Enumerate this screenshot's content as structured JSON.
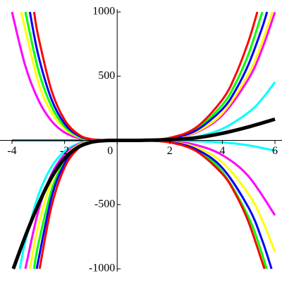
{
  "chart_data": {
    "type": "line",
    "xlim": [
      -4,
      6
    ],
    "ylim": [
      -1000,
      1000
    ],
    "xticks": [
      -4,
      -2,
      0,
      2,
      4,
      6
    ],
    "yticks": [
      -1000,
      -500,
      500,
      1000
    ],
    "series": [
      {
        "color": "#008080",
        "x": [
          -4,
          -3,
          -2,
          -1,
          0
        ],
        "values": [
          0,
          0,
          0,
          0,
          0
        ]
      },
      {
        "color": "#00ffff",
        "x": [
          0,
          1,
          2,
          3,
          4,
          5,
          5.5,
          6
        ],
        "values": [
          0,
          0.4,
          6,
          28,
          90,
          219,
          320,
          454
        ]
      },
      {
        "color": "#ff00ff",
        "x": [
          -4,
          -3.5,
          -3,
          -2.5,
          -2,
          -1.5,
          -1,
          0,
          1,
          2,
          3,
          4,
          5,
          5.5,
          6
        ],
        "values": [
          1000,
          585,
          316,
          152,
          62,
          20,
          4,
          0,
          0.8,
          12,
          62,
          197,
          481,
          705,
          998
        ]
      },
      {
        "color": "#ffff00",
        "x": [
          -3.65,
          -3,
          -2.5,
          -2,
          -1.5,
          -1,
          0,
          1,
          2,
          3,
          4,
          5,
          5.5,
          5.9
        ],
        "values": [
          1000,
          454,
          219,
          90,
          28,
          6,
          0,
          0.8,
          13,
          67,
          212,
          519,
          759,
          1000
        ]
      },
      {
        "color": "#00ff00",
        "x": [
          -3.49,
          -3,
          -2.5,
          -2,
          -1.5,
          -1,
          0,
          1,
          2,
          3,
          4,
          4.5,
          5,
          5.52
        ],
        "values": [
          1000,
          551,
          266,
          109,
          34,
          7,
          0,
          1.1,
          17,
          87,
          276,
          443,
          675,
          1000
        ]
      },
      {
        "color": "#0000ff",
        "x": [
          -3.32,
          -3,
          -2.5,
          -2,
          -1.5,
          -1,
          0,
          1,
          2,
          3,
          4,
          4.5,
          5,
          5.5,
          5.7
        ],
        "values": [
          1000,
          664,
          321,
          131,
          41,
          8,
          0,
          1,
          15,
          77,
          243,
          390,
          594,
          869,
          1000
        ]
      },
      {
        "color": "#ff0000",
        "x": [
          -3.16,
          -3,
          -2.5,
          -2,
          -1.5,
          -1,
          0,
          1,
          2,
          3,
          4,
          4.5,
          5,
          5.33
        ],
        "values": [
          1000,
          810,
          391,
          160,
          51,
          10,
          0,
          1.2,
          20,
          100,
          317,
          508,
          775,
          1000
        ]
      },
      {
        "color": "#00ffff",
        "x": [
          -3.7,
          -3.5,
          -3,
          -2.5,
          -2,
          -1.5,
          -1,
          0,
          2,
          4,
          5,
          6
        ],
        "values": [
          -1000,
          -795,
          -429,
          -207,
          -85,
          -27,
          -5,
          0,
          -1,
          -16,
          -39,
          -80
        ]
      },
      {
        "color": "#ff00ff",
        "x": [
          -3.49,
          -3,
          -2.5,
          -2,
          -1.5,
          -1,
          0,
          1,
          2,
          3,
          4,
          5,
          6
        ],
        "values": [
          -1000,
          -551,
          -266,
          -109,
          -34,
          -7,
          0,
          -0.5,
          -7,
          -36,
          -115,
          -281,
          -583
        ]
      },
      {
        "color": "#ffff00",
        "x": [
          -3.32,
          -3,
          -2.5,
          -2,
          -1.5,
          -1,
          0,
          1,
          2,
          3,
          4,
          5,
          5.5,
          6
        ],
        "values": [
          -1000,
          -664,
          -321,
          -131,
          -41,
          -8,
          0,
          -0.7,
          -11,
          -54,
          -172,
          -419,
          -613,
          -868
        ]
      },
      {
        "color": "#00ff00",
        "x": [
          -3.16,
          -3,
          -2.5,
          -2,
          -1.5,
          -1,
          0,
          1,
          2,
          3,
          4,
          5,
          5.5,
          5.68
        ],
        "values": [
          -1000,
          -810,
          -391,
          -160,
          -51,
          -10,
          0,
          -1,
          -15,
          -78,
          -246,
          -600,
          -878,
          -1000
        ]
      },
      {
        "color": "#0000ff",
        "x": [
          -3.06,
          -2.5,
          -2,
          -1.5,
          -1,
          0,
          1,
          2,
          3,
          4,
          5,
          5.5,
          5.87
        ],
        "values": [
          -1000,
          -446,
          -182,
          -58,
          -11,
          0,
          -0.8,
          -13,
          -68,
          -215,
          -525,
          -769,
          -1000
        ]
      },
      {
        "color": "#ff0000",
        "x": [
          -2.95,
          -2.5,
          -2,
          -1.5,
          -1,
          0,
          1,
          2,
          3,
          4,
          4.5,
          5,
          5.6
        ],
        "values": [
          -1000,
          -516,
          -211,
          -67,
          -13,
          0,
          -1,
          -16,
          -83,
          -261,
          -418,
          -638,
          -1000
        ]
      },
      {
        "color": "#000000",
        "line_width": 5,
        "x": [
          -3.95,
          -3.5,
          -3,
          -2.5,
          -2,
          -1.5,
          -1,
          -0.5,
          0,
          1,
          2,
          3,
          4,
          5,
          6
        ],
        "values": [
          -1000,
          -750,
          -500,
          -290,
          -140,
          -55,
          -15,
          -2,
          0,
          1,
          6,
          20,
          55,
          105,
          165
        ]
      }
    ]
  }
}
